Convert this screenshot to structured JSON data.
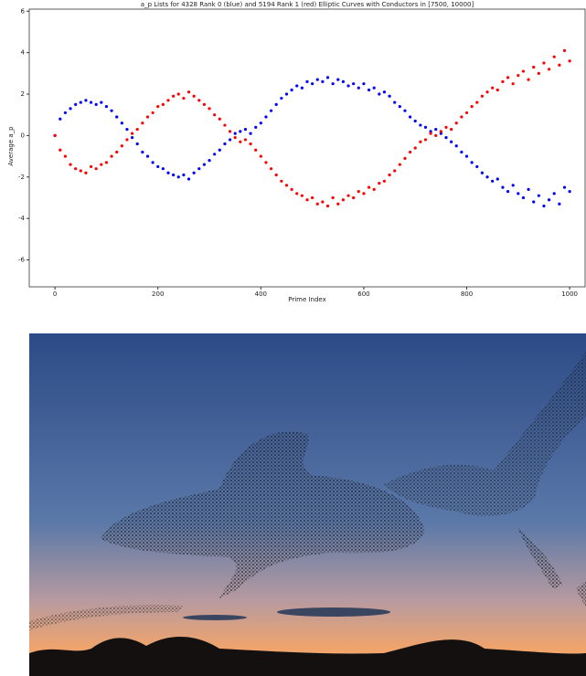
{
  "chart_data": {
    "type": "scatter",
    "title": "a_p Lists for 4328 Rank 0 (blue) and 5194 Rank 1 (red) Elliptic Curves with Conductors in [7500, 10000]",
    "x_label": "Prime Index",
    "y_label": "Average a_p",
    "x": [
      0,
      10,
      20,
      30,
      40,
      50,
      60,
      70,
      80,
      90,
      100,
      110,
      120,
      130,
      140,
      150,
      160,
      170,
      180,
      190,
      200,
      210,
      220,
      230,
      240,
      250,
      260,
      270,
      280,
      290,
      300,
      310,
      320,
      330,
      340,
      350,
      360,
      370,
      380,
      390,
      400,
      410,
      420,
      430,
      440,
      450,
      460,
      470,
      480,
      490,
      500,
      510,
      520,
      530,
      540,
      550,
      560,
      570,
      580,
      590,
      600,
      610,
      620,
      630,
      640,
      650,
      660,
      670,
      680,
      690,
      700,
      710,
      720,
      730,
      740,
      750,
      760,
      770,
      780,
      790,
      800,
      810,
      820,
      830,
      840,
      850,
      860,
      870,
      880,
      890,
      900,
      910,
      920,
      930,
      940,
      950,
      960,
      970,
      980,
      990,
      1000
    ],
    "series": [
      {
        "color": "#0000ff",
        "values": [
          0,
          0.8,
          1.1,
          1.3,
          1.5,
          1.6,
          1.7,
          1.6,
          1.5,
          1.6,
          1.4,
          1.2,
          0.9,
          0.6,
          0.3,
          -0.1,
          -0.4,
          -0.8,
          -1.0,
          -1.3,
          -1.5,
          -1.6,
          -1.8,
          -1.9,
          -2.0,
          -1.9,
          -2.1,
          -1.8,
          -1.6,
          -1.4,
          -1.2,
          -0.9,
          -0.7,
          -0.4,
          -0.2,
          0.1,
          0.2,
          0.3,
          0.1,
          0.4,
          0.6,
          0.9,
          1.2,
          1.5,
          1.8,
          2.0,
          2.2,
          2.4,
          2.3,
          2.6,
          2.5,
          2.7,
          2.6,
          2.8,
          2.5,
          2.7,
          2.6,
          2.4,
          2.5,
          2.3,
          2.5,
          2.2,
          2.3,
          2.0,
          2.1,
          1.9,
          1.6,
          1.4,
          1.2,
          0.9,
          0.7,
          0.5,
          0.4,
          0.2,
          0.3,
          0.1,
          -0.1,
          -0.3,
          -0.5,
          -0.8,
          -1.0,
          -1.3,
          -1.5,
          -1.8,
          -2.0,
          -2.2,
          -2.1,
          -2.5,
          -2.7,
          -2.4,
          -2.8,
          -3.0,
          -2.6,
          -3.2,
          -2.9,
          -3.4,
          -3.1,
          -2.8,
          -3.3,
          -2.5,
          -2.7
        ]
      },
      {
        "color": "#ff0000",
        "values": [
          0,
          -0.7,
          -1.0,
          -1.4,
          -1.6,
          -1.7,
          -1.8,
          -1.5,
          -1.6,
          -1.4,
          -1.3,
          -1.0,
          -0.8,
          -0.5,
          -0.2,
          0.1,
          0.3,
          0.6,
          0.9,
          1.1,
          1.4,
          1.5,
          1.7,
          1.9,
          2.0,
          1.8,
          2.1,
          1.9,
          1.7,
          1.5,
          1.3,
          1.0,
          0.8,
          0.5,
          0.2,
          -0.1,
          -0.3,
          -0.2,
          -0.4,
          -0.7,
          -1.0,
          -1.3,
          -1.6,
          -1.9,
          -2.2,
          -2.4,
          -2.6,
          -2.8,
          -2.9,
          -3.1,
          -3.0,
          -3.3,
          -3.2,
          -3.4,
          -3.0,
          -3.3,
          -3.1,
          -2.9,
          -3.0,
          -2.7,
          -2.8,
          -2.5,
          -2.6,
          -2.3,
          -2.2,
          -1.9,
          -1.7,
          -1.4,
          -1.1,
          -0.8,
          -0.6,
          -0.3,
          -0.2,
          0.1,
          0.0,
          0.2,
          0.4,
          0.3,
          0.6,
          0.9,
          1.1,
          1.4,
          1.6,
          1.9,
          2.1,
          2.3,
          2.2,
          2.6,
          2.8,
          2.5,
          2.9,
          3.1,
          2.7,
          3.3,
          3.0,
          3.5,
          3.2,
          3.8,
          3.4,
          4.1,
          3.6
        ]
      }
    ],
    "xlim": [
      -50,
      1030
    ],
    "ylim": [
      -7.3,
      6.1
    ],
    "xticks": [
      0,
      200,
      400,
      600,
      800,
      1000
    ],
    "yticks": [
      -6,
      -4,
      -2,
      0,
      2,
      4,
      6
    ]
  }
}
